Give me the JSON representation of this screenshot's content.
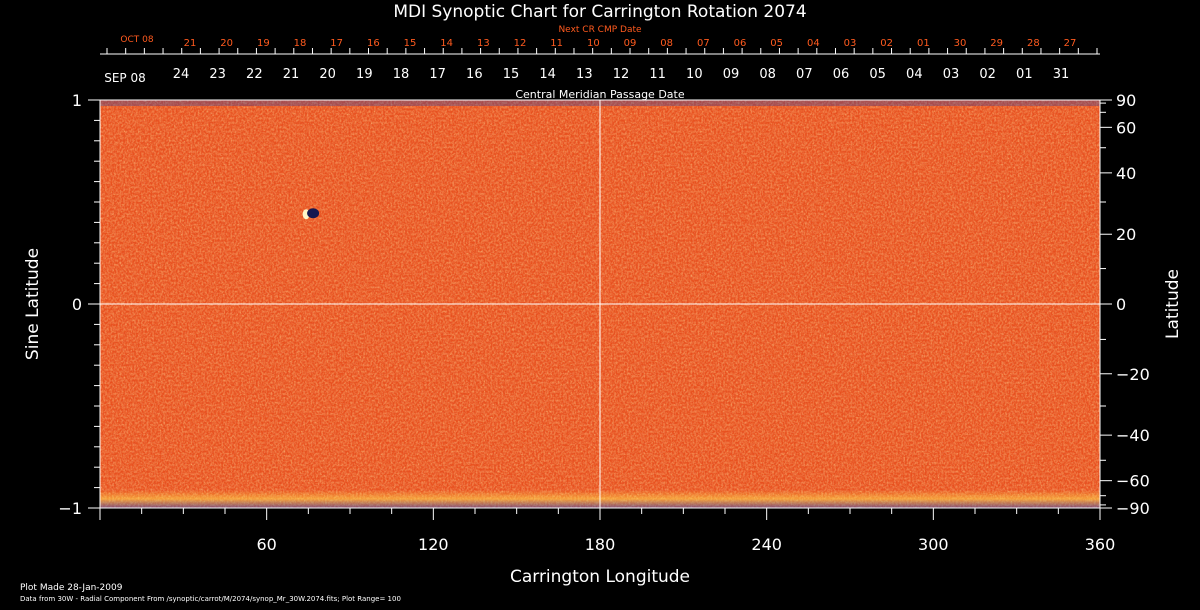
{
  "title": "MDI Synoptic Chart for Carrington Rotation 2074",
  "next_cr_label": "Next CR CMP Date",
  "cmp_label": "Central Meridian Passage Date",
  "next_cr_month": "OCT 08",
  "cmp_month": "SEP 08",
  "next_cr_days": [
    "21",
    "20",
    "19",
    "18",
    "17",
    "16",
    "15",
    "14",
    "13",
    "12",
    "11",
    "10",
    "09",
    "08",
    "07",
    "06",
    "05",
    "04",
    "03",
    "02",
    "01",
    "30",
    "29",
    "28",
    "27"
  ],
  "cmp_days": [
    "24",
    "23",
    "22",
    "21",
    "20",
    "19",
    "18",
    "17",
    "16",
    "15",
    "14",
    "13",
    "12",
    "11",
    "10",
    "09",
    "08",
    "07",
    "06",
    "05",
    "04",
    "03",
    "02",
    "01",
    "31"
  ],
  "footer": {
    "plot_made": "Plot Made 28-Jan-2009",
    "data_source": "Data from 30W - Radial Component From /synoptic/carrot/M/2074/synop_Mr_30W.2074.fits; Plot Range=  100"
  },
  "colors": {
    "background": "#000000",
    "map_base": "#e8501e",
    "map_dark": "#b8280c",
    "map_light": "#ffb03c",
    "next_cr_text": "#ff5a1e",
    "axis": "#ffffff"
  },
  "chart_data": {
    "type": "heatmap",
    "title": "MDI Synoptic Chart for Carrington Rotation 2074",
    "xlabel": "Carrington Longitude",
    "ylabel": "Sine Latitude",
    "y2label": "Latitude",
    "xlim": [
      0,
      360
    ],
    "ylim": [
      -1,
      1
    ],
    "x_ticks": [
      60,
      120,
      180,
      240,
      300,
      360
    ],
    "y_ticks": [
      -1,
      0,
      1
    ],
    "y2_ticks": [
      90,
      60,
      40,
      20,
      0,
      -20,
      -40,
      -60,
      -90
    ],
    "y2_tick_labels": [
      "90",
      "60",
      "40",
      "20",
      "0",
      "−20",
      "−40",
      "−60",
      "−90"
    ],
    "crosshair": {
      "x": 180,
      "y": 0
    },
    "features": [
      {
        "name": "active-region",
        "longitude": 76,
        "sine_latitude": 0.44
      }
    ]
  }
}
